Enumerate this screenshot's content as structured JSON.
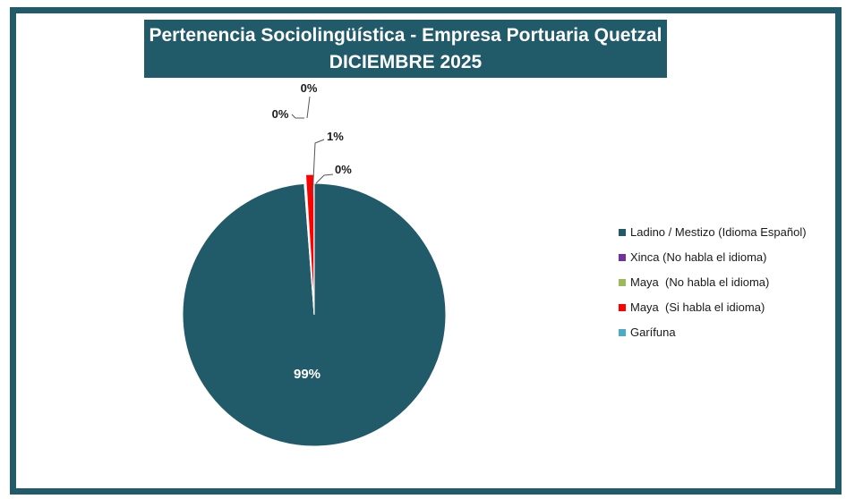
{
  "chart_data": {
    "type": "pie",
    "title": "Pertenencia Sociolingüística - Empresa Portuaria Quetzal",
    "subtitle": "DICIEMBRE 2025",
    "legend_position": "right",
    "slices": [
      {
        "label": "Ladino / Mestizo (Idioma Español)",
        "value": 99,
        "display": "99%",
        "color": "#215a69"
      },
      {
        "label": "Xinca (No habla el idioma)",
        "value": 0,
        "display": "0%",
        "color": "#7030a0"
      },
      {
        "label": "Maya  (No habla el idioma)",
        "value": 0,
        "display": "0%",
        "color": "#9bbb59"
      },
      {
        "label": "Maya  (Si habla el idioma)",
        "value": 1,
        "display": "1%",
        "color": "#ff0000"
      },
      {
        "label": "Garífuna",
        "value": 0,
        "display": "0%",
        "color": "#4bacc6"
      }
    ]
  }
}
